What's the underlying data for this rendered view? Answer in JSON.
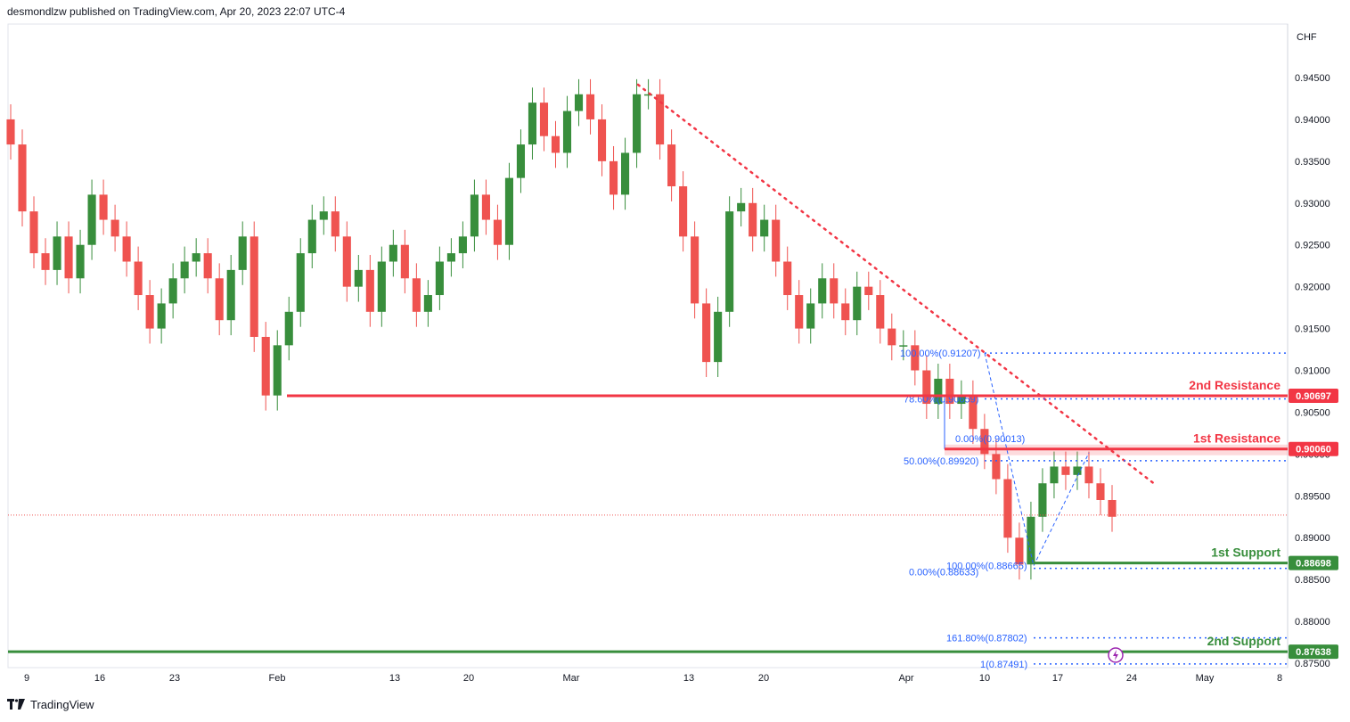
{
  "header": {
    "publisher": "desmondlzw published on TradingView.com, Apr 20, 2023 22:07 UTC-4"
  },
  "footer": {
    "brand": "TradingView"
  },
  "colors": {
    "up": "#26a69a",
    "up_dark": "#388e3c",
    "down": "#ef5350",
    "resistance": "#f23645",
    "support": "#388e3c",
    "fib": "#2962ff",
    "trendline": "#f23645"
  },
  "chart_data": {
    "type": "candlestick",
    "symbol_currency": "CHF",
    "x_axis_ticks": [
      "9",
      "16",
      "23",
      "Feb",
      "13",
      "20",
      "Mar",
      "13",
      "20",
      "Apr",
      "10",
      "17",
      "24",
      "May",
      "8"
    ],
    "y_axis_ticks": [
      "0.94500",
      "0.94000",
      "0.93500",
      "0.93000",
      "0.92500",
      "0.92000",
      "0.91500",
      "0.91000",
      "0.90500",
      "0.90000",
      "0.89500",
      "0.89000",
      "0.88500",
      "0.88000",
      "0.87500"
    ],
    "ylim": [
      0.8745,
      0.9495
    ],
    "price_close_series": [
      0.937,
      0.929,
      0.924,
      0.922,
      0.926,
      0.921,
      0.925,
      0.931,
      0.928,
      0.926,
      0.923,
      0.919,
      0.915,
      0.918,
      0.921,
      0.923,
      0.924,
      0.921,
      0.916,
      0.922,
      0.926,
      0.914,
      0.907,
      0.913,
      0.917,
      0.924,
      0.928,
      0.929,
      0.926,
      0.92,
      0.922,
      0.917,
      0.923,
      0.925,
      0.921,
      0.917,
      0.919,
      0.923,
      0.924,
      0.926,
      0.931,
      0.928,
      0.925,
      0.933,
      0.937,
      0.942,
      0.938,
      0.936,
      0.941,
      0.943,
      0.94,
      0.935,
      0.931,
      0.936,
      0.943,
      0.943,
      0.937,
      0.932,
      0.926,
      0.918,
      0.911,
      0.917,
      0.929,
      0.93,
      0.926,
      0.928,
      0.923,
      0.919,
      0.915,
      0.918,
      0.921,
      0.918,
      0.916,
      0.92,
      0.919,
      0.915,
      0.913,
      0.913,
      0.91,
      0.906,
      0.909,
      0.906,
      0.907,
      0.903,
      0.9,
      0.897,
      0.89,
      0.8868,
      0.8925,
      0.8965,
      0.8985,
      0.8975,
      0.8985,
      0.8965,
      0.8945,
      0.8925
    ],
    "levels": [
      {
        "label": "2nd Resistance",
        "value": "0.90697",
        "price": 0.90697,
        "kind": "resistance"
      },
      {
        "label": "1st Resistance",
        "value": "0.90060",
        "price": 0.9006,
        "kind": "resistance"
      },
      {
        "label": "1st Support",
        "value": "0.88698",
        "price": 0.88698,
        "kind": "support"
      },
      {
        "label": "2nd Support",
        "value": "0.87638",
        "price": 0.87638,
        "kind": "support"
      }
    ],
    "fib_labels": [
      {
        "text": "100.00%(0.91207)",
        "price": 0.91207
      },
      {
        "text": "78.60%(0.90659)",
        "price": 0.90659
      },
      {
        "text": "50.00%(0.89920)",
        "price": 0.8992
      },
      {
        "text": "0.00%(0.90013)",
        "price": 0.90013
      },
      {
        "text": "100.00%(0.88665)",
        "price": 0.88665
      },
      {
        "text": "0.00%(0.88633)",
        "price": 0.88633
      },
      {
        "text": "161.80%(0.87802)",
        "price": 0.87802
      },
      {
        "text": "1(0.87491)",
        "price": 0.87491
      }
    ],
    "last_price": 0.8927
  }
}
